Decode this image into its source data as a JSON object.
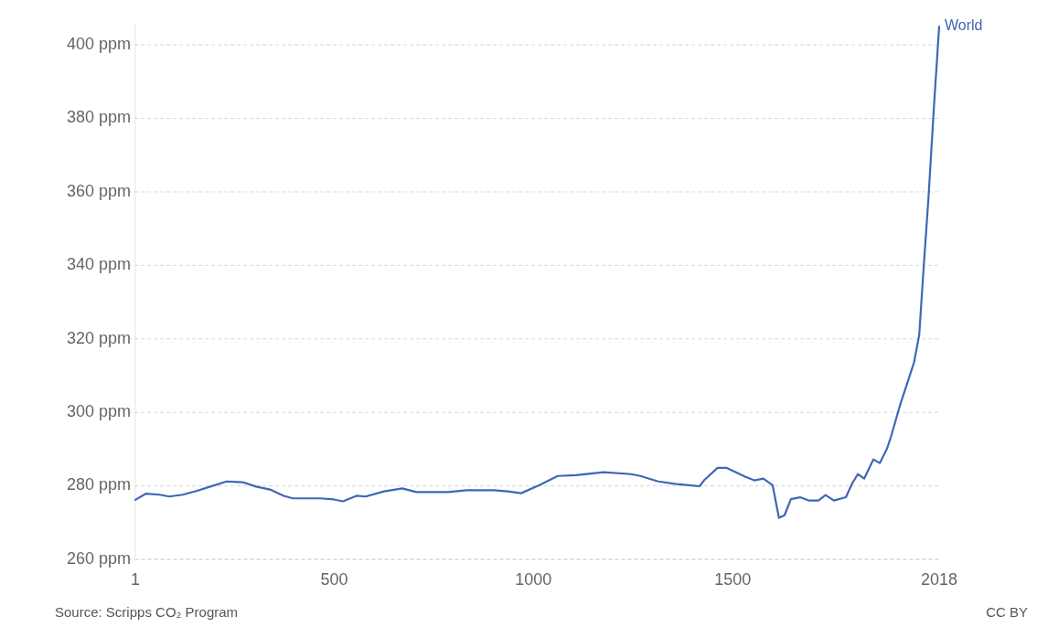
{
  "chart_data": {
    "type": "line",
    "x": [
      1,
      28,
      62,
      86,
      120,
      154,
      189,
      230,
      270,
      304,
      339,
      373,
      396,
      465,
      499,
      522,
      556,
      579,
      625,
      671,
      706,
      786,
      832,
      901,
      935,
      969,
      1015,
      1061,
      1107,
      1176,
      1245,
      1268,
      1313,
      1359,
      1417,
      1428,
      1462,
      1485,
      1531,
      1554,
      1577,
      1600,
      1616,
      1630,
      1646,
      1669,
      1692,
      1715,
      1733,
      1754,
      1784,
      1800,
      1814,
      1830,
      1853,
      1869,
      1887,
      1898,
      1921,
      1940,
      1955,
      1968,
      1978,
      1991,
      2005,
      2018
    ],
    "series": [
      {
        "name": "World",
        "color": "#3e67b5",
        "values": [
          276.2,
          277.9,
          277.6,
          277.1,
          277.6,
          278.6,
          279.8,
          281.2,
          281,
          279.8,
          279,
          277.3,
          276.6,
          276.6,
          276.3,
          275.8,
          277.3,
          277.1,
          278.5,
          279.3,
          278.3,
          278.3,
          278.8,
          278.8,
          278.5,
          278,
          280.2,
          282.7,
          282.9,
          283.7,
          283.2,
          282.7,
          281.2,
          280.5,
          279.9,
          281.5,
          284.9,
          284.9,
          282.5,
          281.5,
          282,
          280.2,
          271.3,
          272,
          276.4,
          276.9,
          276,
          276,
          277.5,
          276,
          276.9,
          280.7,
          283.2,
          282,
          287.2,
          286.2,
          290.1,
          293.7,
          302.4,
          308.6,
          313.6,
          321.1,
          337.6,
          358,
          383.3,
          405
        ]
      }
    ],
    "xlim": [
      1,
      2018
    ],
    "xticks": [
      1,
      500,
      1000,
      1500,
      2018
    ],
    "ylim": [
      260,
      406
    ],
    "yticks": [
      {
        "value": 260,
        "label": "260 ppm"
      },
      {
        "value": 280,
        "label": "280 ppm"
      },
      {
        "value": 300,
        "label": "300 ppm"
      },
      {
        "value": 320,
        "label": "320 ppm"
      },
      {
        "value": 340,
        "label": "340 ppm"
      },
      {
        "value": 360,
        "label": "360 ppm"
      },
      {
        "value": 380,
        "label": "380 ppm"
      },
      {
        "value": 400,
        "label": "400 ppm"
      }
    ],
    "grid": "y",
    "annotations": [
      "Source: Scripps CO₂ Program",
      "CC BY"
    ]
  }
}
